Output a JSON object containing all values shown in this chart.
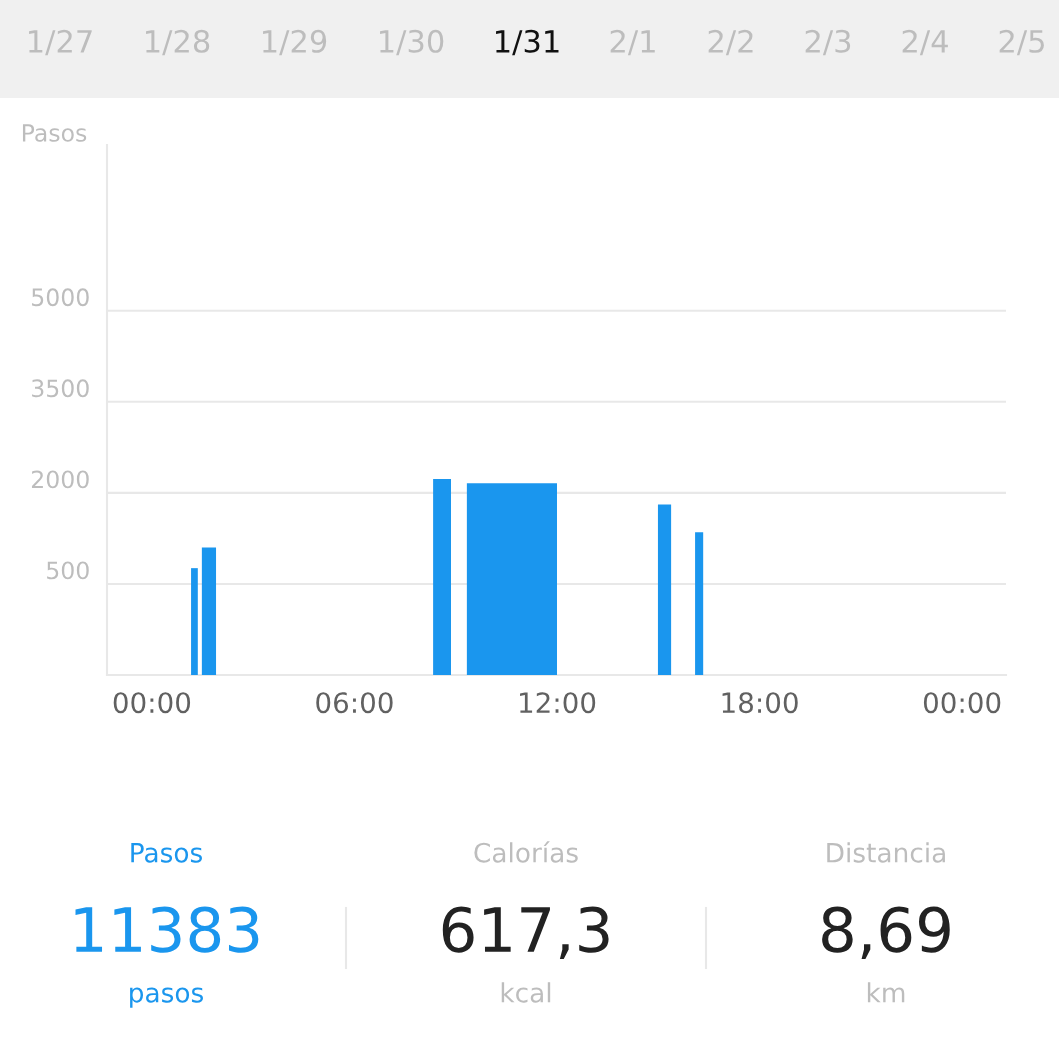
{
  "chart_data": {
    "type": "histogram",
    "ylabel": "Pasos",
    "bins": [
      1.16,
      1.36,
      1.48,
      1.9,
      8.33,
      8.86,
      9.33,
      12.0,
      14.99,
      15.38,
      16.09,
      16.33
    ],
    "values": [
      760,
      0,
      1100,
      0,
      2230,
      0,
      2160,
      0,
      1810,
      0,
      1350
    ],
    "color": "#1a96ee",
    "xlim": [
      -1.33,
      25.3
    ],
    "xticks": [
      {
        "value": 0,
        "label": "00:00"
      },
      {
        "value": 6,
        "label": "06:00"
      },
      {
        "value": 12,
        "label": "12:00"
      },
      {
        "value": 18,
        "label": "18:00"
      },
      {
        "value": 24,
        "label": "00:00"
      }
    ],
    "ylim": [
      0,
      7730
    ],
    "yticks": [
      500,
      2000,
      3500,
      5000
    ],
    "grid": "y",
    "annotations": [
      "1/27",
      "1/28",
      "1/29",
      "1/30",
      "1/31",
      "2/1",
      "2/2",
      "2/3",
      "2/4",
      "2/5",
      "Pasos",
      "Calorías",
      "Distancia",
      "11383",
      "617,3",
      "8,69",
      "pasos",
      "kcal",
      "km"
    ]
  }
}
